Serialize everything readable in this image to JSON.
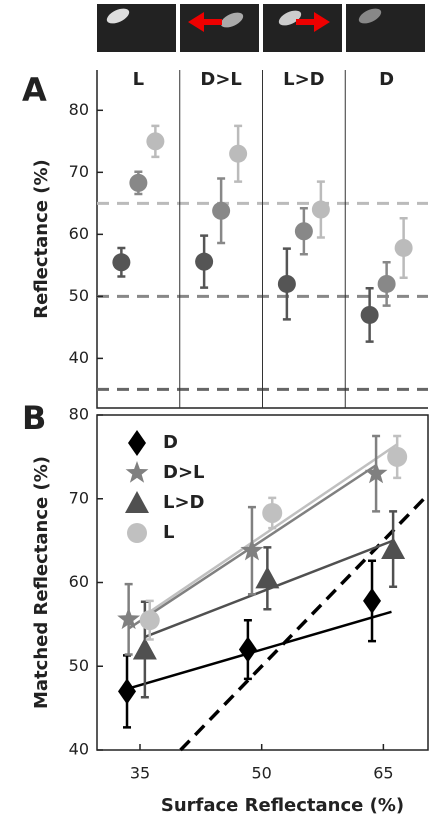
{
  "chart_data": [
    {
      "type": "dot",
      "panel_label": "A",
      "y_label": "Reflectance (%)",
      "categories": [
        "L",
        "D>L",
        "L>D",
        "D"
      ],
      "series": [
        {
          "color": "#555555",
          "values": [
            55.5,
            55.6,
            52,
            47
          ],
          "errors": [
            2.3,
            4.2,
            5.7,
            4.3
          ]
        },
        {
          "color": "#888888",
          "values": [
            68.3,
            63.8,
            60.5,
            52
          ],
          "errors": [
            1.8,
            5.2,
            3.7,
            3.5
          ]
        },
        {
          "color": "#bbbbbb",
          "values": [
            75,
            73,
            64,
            57.8
          ],
          "errors": [
            2.5,
            4.5,
            4.5,
            4.8
          ]
        }
      ],
      "reference_lines": [
        {
          "value": 35,
          "color": "#666666"
        },
        {
          "value": 50,
          "color": "#888888"
        },
        {
          "value": 65,
          "color": "#bbbbbb"
        }
      ],
      "ylim": [
        32,
        86.5
      ],
      "yticks": [
        40,
        50,
        60,
        70,
        80
      ]
    },
    {
      "type": "scatter",
      "panel_label": "B",
      "x_label": "Surface Reflectance (%)",
      "y_label": "Matched Reflectance (%)",
      "series": [
        {
          "name": "D",
          "marker": "diamond",
          "color": "#000000",
          "x": [
            33.4,
            48.3,
            63.6
          ],
          "values": [
            47,
            52,
            57.8
          ],
          "errors": [
            4.3,
            3.5,
            4.8
          ],
          "fit": {
            "x": [
              33.4,
              66
            ],
            "values": [
              47.3,
              56.5
            ]
          }
        },
        {
          "name": "D>L",
          "marker": "star",
          "color": "#808080",
          "x": [
            33.6,
            48.8,
            64.1
          ],
          "values": [
            55.6,
            63.8,
            73
          ],
          "errors": [
            4.2,
            5.2,
            4.5
          ],
          "fit": {
            "x": [
              33.6,
              64.1
            ],
            "values": [
              54.5,
              74
            ]
          }
        },
        {
          "name": "L>D",
          "marker": "triangle",
          "color": "#505050",
          "x": [
            35.6,
            50.7,
            66.2
          ],
          "values": [
            52,
            60.5,
            64
          ],
          "errors": [
            5.7,
            3.7,
            4.5
          ],
          "fit": {
            "x": [
              35.6,
              66.2
            ],
            "values": [
              53.5,
              65
            ]
          }
        },
        {
          "name": "L",
          "marker": "circle",
          "color": "#c0c0c0",
          "x": [
            36.2,
            51.3,
            66.7
          ],
          "values": [
            55.5,
            68.3,
            75
          ],
          "errors": [
            2.3,
            1.8,
            2.5
          ],
          "fit": {
            "x": [
              36.2,
              66.7
            ],
            "values": [
              56.5,
              76.5
            ]
          }
        }
      ],
      "xlim": [
        29.7,
        70.5
      ],
      "xticks": [
        35,
        50,
        65
      ],
      "ylim": [
        40,
        80
      ],
      "yticks": [
        40,
        50,
        60,
        70,
        80
      ],
      "identity_line": true,
      "legend": "upper left"
    }
  ]
}
